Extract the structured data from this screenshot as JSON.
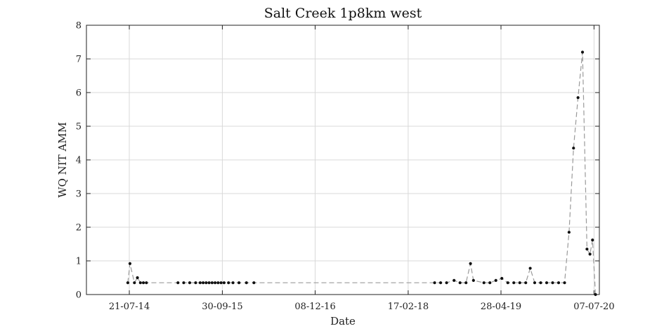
{
  "chart_data": {
    "type": "line",
    "title": "Salt Creek 1p8km west",
    "xlabel": "Date",
    "ylabel": "WQ NIT AMM",
    "xlim": [
      "2014-01-01",
      "2020-08-01"
    ],
    "ylim": [
      0,
      8
    ],
    "x_ticks": [
      "2014-07-21",
      "2015-09-30",
      "2016-12-08",
      "2018-02-17",
      "2019-04-28",
      "2020-07-07"
    ],
    "x_tick_labels": [
      "21-07-14",
      "30-09-15",
      "08-12-16",
      "17-02-18",
      "28-04-19",
      "07-07-20"
    ],
    "y_ticks": [
      0,
      1,
      2,
      3,
      4,
      5,
      6,
      7,
      8
    ],
    "grid": true,
    "series": [
      {
        "color": "#9a9a9a",
        "marker_color": "#111111",
        "line_style": "dashed",
        "x": [
          "2014-07-14",
          "2014-07-24",
          "2014-08-14",
          "2014-08-28",
          "2014-09-11",
          "2014-09-25",
          "2014-10-09",
          "2015-03-06",
          "2015-04-02",
          "2015-04-30",
          "2015-05-28",
          "2015-06-18",
          "2015-07-02",
          "2015-07-16",
          "2015-07-30",
          "2015-08-13",
          "2015-08-27",
          "2015-09-10",
          "2015-09-24",
          "2015-10-08",
          "2015-10-29",
          "2015-11-19",
          "2015-12-17",
          "2016-01-21",
          "2016-02-25",
          "2018-06-21",
          "2018-07-19",
          "2018-08-16",
          "2018-09-20",
          "2018-10-18",
          "2018-11-15",
          "2018-12-06",
          "2018-12-20",
          "2019-02-07",
          "2019-03-07",
          "2019-04-04",
          "2019-05-02",
          "2019-05-30",
          "2019-06-27",
          "2019-07-25",
          "2019-08-22",
          "2019-09-12",
          "2019-10-03",
          "2019-10-31",
          "2019-11-28",
          "2019-12-26",
          "2020-01-23",
          "2020-02-20",
          "2020-03-12",
          "2020-04-02",
          "2020-04-23",
          "2020-05-14",
          "2020-06-04",
          "2020-06-18",
          "2020-06-30",
          "2020-07-14"
        ],
        "y": [
          0.35,
          0.92,
          0.35,
          0.5,
          0.35,
          0.35,
          0.35,
          0.35,
          0.35,
          0.35,
          0.35,
          0.35,
          0.35,
          0.35,
          0.35,
          0.35,
          0.35,
          0.35,
          0.35,
          0.35,
          0.35,
          0.35,
          0.35,
          0.35,
          0.35,
          0.35,
          0.35,
          0.35,
          0.42,
          0.35,
          0.35,
          0.92,
          0.42,
          0.35,
          0.35,
          0.42,
          0.48,
          0.35,
          0.35,
          0.35,
          0.35,
          0.78,
          0.35,
          0.35,
          0.35,
          0.35,
          0.35,
          0.35,
          1.85,
          4.35,
          5.85,
          7.2,
          1.35,
          1.2,
          1.62,
          0.0
        ]
      }
    ]
  }
}
